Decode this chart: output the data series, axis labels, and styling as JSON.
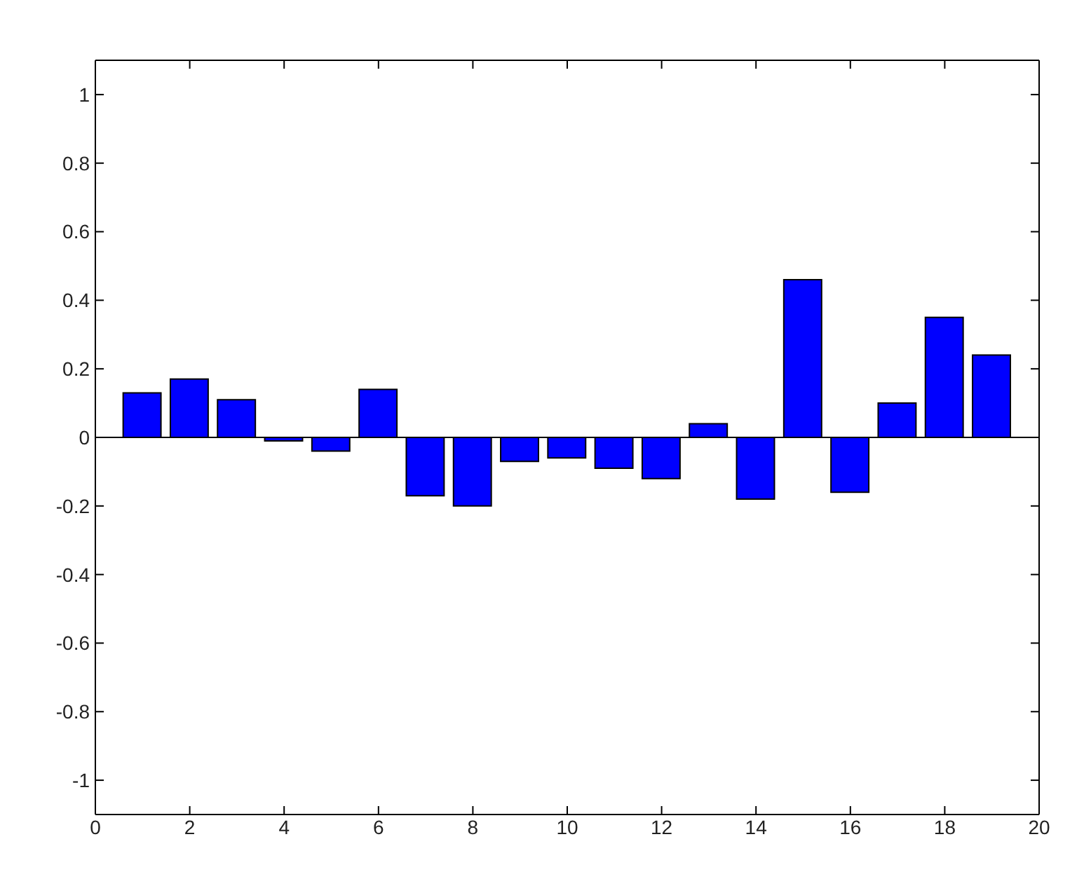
{
  "chart_data": {
    "type": "bar",
    "x": [
      1,
      2,
      3,
      4,
      5,
      6,
      7,
      8,
      9,
      10,
      11,
      12,
      13,
      14,
      15,
      16,
      17,
      18,
      19
    ],
    "values": [
      0.13,
      0.17,
      0.11,
      -0.01,
      -0.04,
      0.14,
      -0.17,
      -0.2,
      -0.07,
      -0.06,
      -0.09,
      -0.12,
      0.04,
      -0.18,
      0.46,
      -0.16,
      0.1,
      0.35,
      0.24
    ],
    "color": "#0000ff",
    "xlim": [
      0,
      20
    ],
    "xticks": [
      0,
      2,
      4,
      6,
      8,
      10,
      12,
      14,
      16,
      18,
      20
    ],
    "ylim": [
      -1.1,
      1.1
    ],
    "yticks": [
      -1,
      -0.8,
      -0.6,
      -0.4,
      -0.2,
      0,
      0.2,
      0.4,
      0.6,
      0.8,
      1
    ],
    "ref_lines": [
      {
        "axis": "y",
        "value": 0,
        "color": "#000000"
      }
    ],
    "grid": false,
    "legend": false
  }
}
